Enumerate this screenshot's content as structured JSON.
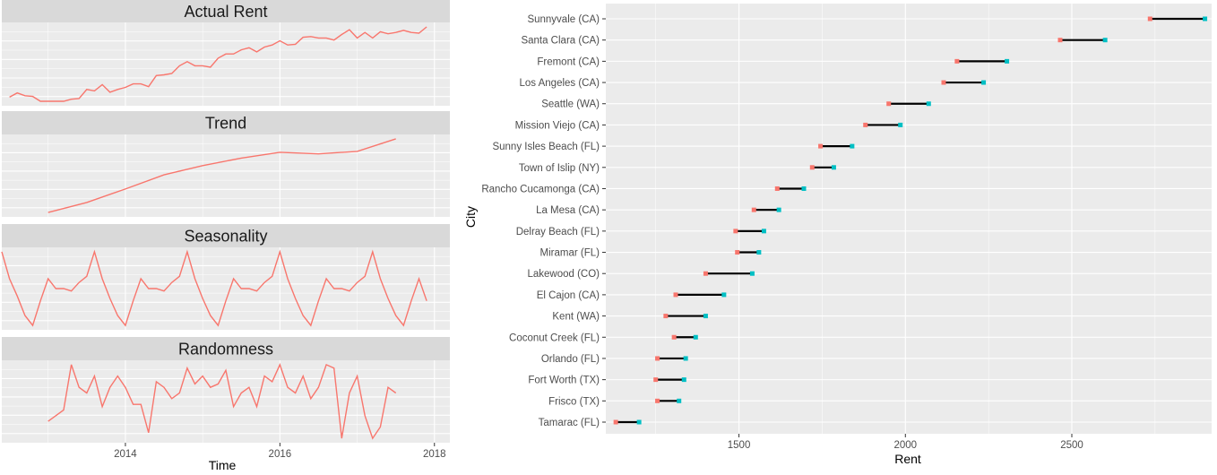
{
  "colors": {
    "panel_bg": "#ebebeb",
    "strip_bg": "#d9d9d9",
    "grid": "#ffffff",
    "line": "#f8766d",
    "segment": "#000000",
    "start_point": "#f8766d",
    "end_point": "#00bfc4",
    "axis_text": "#4d4d4d",
    "title_text": "#1a1a1a"
  },
  "chart_data": [
    {
      "type": "line",
      "facet_titles": [
        "Actual Rent",
        "Trend",
        "Seasonality",
        "Randomness"
      ],
      "xlabel": "Time",
      "xlim": [
        2012.4,
        2018.2
      ],
      "xticks": [
        2014,
        2016,
        2018
      ],
      "xtick_labels": [
        "2014",
        "2016",
        "2018"
      ],
      "grid": true,
      "series": [
        {
          "x": [
            2012.5,
            2012.6,
            2012.7,
            2012.8,
            2012.9,
            2013.0,
            2013.1,
            2013.2,
            2013.3,
            2013.4,
            2013.5,
            2013.6,
            2013.7,
            2013.8,
            2013.9,
            2014.0,
            2014.1,
            2014.2,
            2014.3,
            2014.4,
            2014.5,
            2014.6,
            2014.7,
            2014.8,
            2014.9,
            2015.0,
            2015.1,
            2015.2,
            2015.3,
            2015.4,
            2015.5,
            2015.6,
            2015.7,
            2015.8,
            2015.9,
            2016.0,
            2016.1,
            2016.2,
            2016.3,
            2016.4,
            2016.5,
            2016.6,
            2016.7,
            2016.8,
            2016.9,
            2017.0,
            2017.1,
            2017.2,
            2017.3,
            2017.4,
            2017.5,
            2017.6,
            2017.7,
            2017.8,
            2017.9
          ],
          "y": [
            1355,
            1385,
            1365,
            1360,
            1325,
            1325,
            1325,
            1325,
            1340,
            1345,
            1410,
            1400,
            1445,
            1390,
            1410,
            1425,
            1450,
            1450,
            1430,
            1510,
            1515,
            1525,
            1580,
            1610,
            1580,
            1580,
            1570,
            1635,
            1665,
            1665,
            1695,
            1710,
            1680,
            1715,
            1730,
            1760,
            1730,
            1735,
            1785,
            1790,
            1780,
            1780,
            1765,
            1805,
            1840,
            1780,
            1820,
            1780,
            1825,
            1810,
            1820,
            1835,
            1820,
            1815,
            1860
          ]
        },
        {
          "x": [
            2013.0,
            2013.5,
            2014.0,
            2014.5,
            2015.0,
            2015.5,
            2016.0,
            2016.5,
            2017.0,
            2017.5
          ],
          "y": [
            1320,
            1380,
            1460,
            1545,
            1600,
            1645,
            1680,
            1670,
            1685,
            1760
          ]
        },
        {
          "x": [
            2012.4,
            2012.5,
            2012.6,
            2012.7,
            2012.8,
            2012.9,
            2013.0,
            2013.1,
            2013.2,
            2013.3,
            2013.4,
            2013.5,
            2013.6,
            2013.7,
            2013.8,
            2013.9,
            2014.0,
            2014.1,
            2014.2,
            2014.3,
            2014.4,
            2014.5,
            2014.6,
            2014.7,
            2014.8,
            2014.9,
            2015.0,
            2015.1,
            2015.2,
            2015.3,
            2015.4,
            2015.5,
            2015.6,
            2015.7,
            2015.8,
            2015.9,
            2016.0,
            2016.1,
            2016.2,
            2016.3,
            2016.4,
            2016.5,
            2016.6,
            2016.7,
            2016.8,
            2016.9,
            2017.0,
            2017.1,
            2017.2,
            2017.3,
            2017.4,
            2017.5,
            2017.6,
            2017.7,
            2017.8,
            2017.9
          ],
          "y": [
            30,
            8,
            -6,
            -22,
            -30,
            -10,
            8,
            0,
            0,
            -2,
            5,
            10,
            30,
            8,
            -8,
            -22,
            -30,
            -10,
            8,
            0,
            0,
            -2,
            5,
            10,
            30,
            8,
            -8,
            -22,
            -30,
            -10,
            8,
            0,
            0,
            -2,
            5,
            10,
            30,
            8,
            -8,
            -22,
            -30,
            -10,
            8,
            0,
            0,
            -2,
            5,
            10,
            30,
            8,
            -8,
            -22,
            -30,
            -10,
            8,
            -10
          ]
        },
        {
          "x": [
            2013.0,
            2013.1,
            2013.2,
            2013.3,
            2013.4,
            2013.5,
            2013.6,
            2013.7,
            2013.8,
            2013.9,
            2014.0,
            2014.1,
            2014.2,
            2014.3,
            2014.4,
            2014.5,
            2014.6,
            2014.7,
            2014.8,
            2014.9,
            2015.0,
            2015.1,
            2015.2,
            2015.3,
            2015.4,
            2015.5,
            2015.6,
            2015.7,
            2015.8,
            2015.9,
            2016.0,
            2016.1,
            2016.2,
            2016.3,
            2016.4,
            2016.5,
            2016.6,
            2016.7,
            2016.8,
            2016.9,
            2017.0,
            2017.1,
            2017.2,
            2017.3,
            2017.4,
            2017.5
          ],
          "y": [
            -25,
            -20,
            -15,
            25,
            5,
            0,
            15,
            -12,
            5,
            15,
            5,
            -10,
            -10,
            -35,
            10,
            5,
            -5,
            0,
            22,
            8,
            15,
            5,
            8,
            20,
            -12,
            0,
            5,
            -12,
            15,
            10,
            25,
            5,
            0,
            15,
            -5,
            5,
            25,
            22,
            -40,
            0,
            15,
            -20,
            -40,
            -30,
            5,
            0
          ]
        }
      ]
    },
    {
      "type": "dumbbell",
      "xlabel": "Rent",
      "ylabel": "City",
      "xlim": [
        1100,
        2920
      ],
      "xticks": [
        1500,
        2000,
        2500
      ],
      "xtick_labels": [
        "1500",
        "2000",
        "2500"
      ],
      "grid": true,
      "categories": [
        "Sunnyvale (CA)",
        "Santa Clara (CA)",
        "Fremont (CA)",
        "Los Angeles (CA)",
        "Seattle (WA)",
        "Mission Viejo (CA)",
        "Sunny Isles Beach (FL)",
        "Town of Islip (NY)",
        "Rancho Cucamonga (CA)",
        "La Mesa (CA)",
        "Delray Beach (FL)",
        "Miramar (FL)",
        "Lakewood (CO)",
        "El Cajon (CA)",
        "Kent (WA)",
        "Coconut Creek (FL)",
        "Orlando (FL)",
        "Fort Worth (TX)",
        "Frisco (TX)",
        "Tamarac (FL)"
      ],
      "start_values": [
        2735,
        2465,
        2155,
        2115,
        1950,
        1880,
        1745,
        1720,
        1615,
        1545,
        1490,
        1495,
        1400,
        1310,
        1280,
        1305,
        1255,
        1250,
        1255,
        1130
      ],
      "end_values": [
        2900,
        2600,
        2305,
        2235,
        2070,
        1985,
        1840,
        1785,
        1695,
        1620,
        1575,
        1560,
        1540,
        1455,
        1400,
        1370,
        1340,
        1335,
        1320,
        1200
      ]
    }
  ]
}
